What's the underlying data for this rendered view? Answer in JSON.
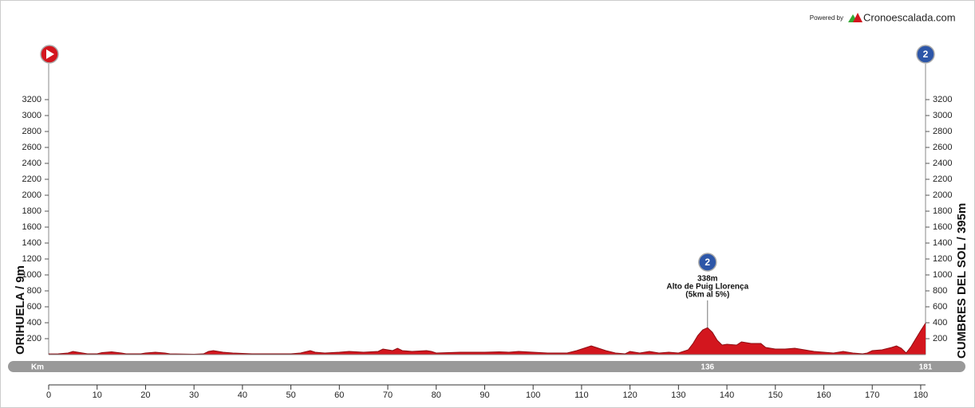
{
  "chart_data": {
    "type": "area",
    "powered_by": "Powered by",
    "brand": "Cronoescalada.com",
    "start_label": "ORIHUELA / 9m",
    "finish_label": "CUMBRES DEL SOL / 395m",
    "color": "#d3161e",
    "line_color": "#8e0d12",
    "x": [
      0,
      2,
      4,
      5,
      6,
      8,
      10,
      11,
      13,
      15,
      16,
      19,
      20,
      22,
      24,
      25,
      30,
      32,
      33,
      34,
      36,
      38,
      42,
      45,
      50,
      52,
      54,
      55,
      57,
      60,
      62,
      65,
      68,
      69,
      70,
      71,
      72,
      73,
      75,
      78,
      79,
      80,
      85,
      90,
      93,
      95,
      97,
      100,
      103,
      107,
      109,
      111,
      112,
      113,
      115,
      117,
      119,
      120,
      122,
      124,
      126,
      128,
      130,
      132,
      133,
      134,
      135,
      136,
      137,
      138,
      139,
      140,
      142,
      143,
      145,
      147,
      148,
      150,
      152,
      154,
      156,
      158,
      160,
      162,
      164,
      166,
      168,
      169,
      170,
      172,
      174,
      175,
      176,
      177,
      178,
      180,
      181
    ],
    "values": [
      9,
      10,
      20,
      40,
      30,
      10,
      10,
      25,
      35,
      20,
      10,
      10,
      20,
      30,
      20,
      10,
      5,
      10,
      40,
      50,
      30,
      20,
      10,
      10,
      10,
      20,
      50,
      30,
      20,
      30,
      40,
      30,
      40,
      70,
      60,
      50,
      80,
      50,
      40,
      50,
      40,
      20,
      30,
      30,
      35,
      30,
      40,
      30,
      20,
      20,
      50,
      90,
      110,
      90,
      50,
      20,
      10,
      40,
      20,
      40,
      20,
      30,
      20,
      60,
      140,
      240,
      310,
      338,
      280,
      180,
      120,
      130,
      120,
      160,
      140,
      140,
      90,
      70,
      70,
      80,
      60,
      40,
      30,
      20,
      40,
      20,
      10,
      20,
      50,
      60,
      90,
      110,
      80,
      20,
      100,
      300,
      395
    ],
    "xlim": [
      0,
      181
    ],
    "xticks": [
      0,
      10,
      20,
      30,
      40,
      50,
      60,
      70,
      80,
      90,
      100,
      110,
      120,
      130,
      140,
      150,
      160,
      170,
      180
    ],
    "ylim": [
      0,
      3600
    ],
    "yticks": [
      200,
      400,
      600,
      800,
      1000,
      1200,
      1400,
      1600,
      1800,
      2000,
      2200,
      2400,
      2600,
      2800,
      3000,
      3200
    ],
    "km_bar": {
      "label": "Km",
      "points": [
        136,
        181
      ]
    },
    "climb": {
      "x": 136,
      "elevation": 338,
      "elevation_label": "338m",
      "name": "Alto de Puig Llorença",
      "detail": "(5km al 5%)"
    }
  }
}
